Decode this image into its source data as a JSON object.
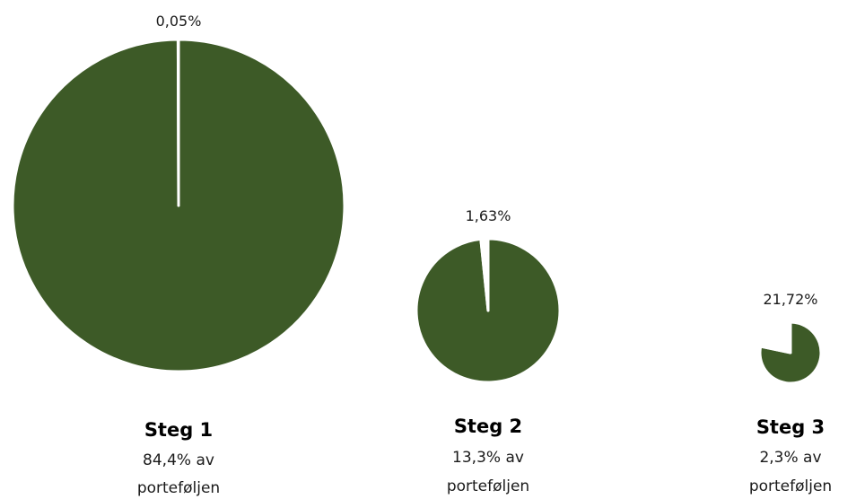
{
  "chart_data": {
    "type": "pie",
    "slice_color": "#ffffff",
    "fill_color": "#3d5a27",
    "charts": [
      {
        "title": "Steg 1",
        "subtitle_line1": "84,4% av",
        "subtitle_line2": "porteføljen",
        "portfolio_share": 84.4,
        "slice_value": 0.05,
        "slice_label": "0,05%"
      },
      {
        "title": "Steg 2",
        "subtitle_line1": "13,3% av",
        "subtitle_line2": "porteføljen",
        "portfolio_share": 13.3,
        "slice_value": 1.63,
        "slice_label": "1,63%"
      },
      {
        "title": "Steg 3",
        "subtitle_line1": "2,3% av",
        "subtitle_line2": "porteføljen",
        "portfolio_share": 2.3,
        "slice_value": 21.72,
        "slice_label": "21,72%"
      }
    ]
  }
}
